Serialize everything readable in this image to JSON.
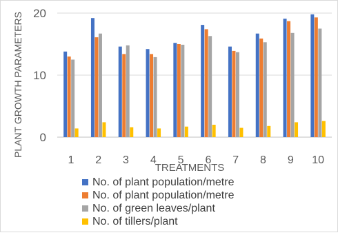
{
  "chart_data": {
    "type": "bar",
    "title": "",
    "xlabel": "TREATMENTS",
    "ylabel": "PLANT GROWTH PARAMETERS",
    "categories": [
      "1",
      "2",
      "3",
      "4",
      "5",
      "6",
      "7",
      "8",
      "9",
      "10"
    ],
    "ylim": [
      0,
      20
    ],
    "yticks": [
      "0",
      "10",
      "20"
    ],
    "grid": true,
    "legend_position": "bottom",
    "series": [
      {
        "name": "No. of plant population/metre",
        "color": "#4472C4",
        "values": [
          13.8,
          19.2,
          14.6,
          14.2,
          15.2,
          18.1,
          14.6,
          16.7,
          19.1,
          19.8
        ]
      },
      {
        "name": "No. of plant population/metre",
        "color": "#ED7D31",
        "values": [
          13.0,
          16.1,
          13.4,
          13.4,
          15.0,
          17.4,
          13.9,
          15.9,
          18.7,
          19.3
        ]
      },
      {
        "name": "No. of green leaves/plant",
        "color": "#A5A5A5",
        "values": [
          12.5,
          16.7,
          14.8,
          12.9,
          14.9,
          16.3,
          13.7,
          15.3,
          16.8,
          17.5
        ]
      },
      {
        "name": "No. of tillers/plant",
        "color": "#FFC000",
        "values": [
          1.4,
          2.4,
          1.6,
          1.4,
          1.7,
          2.0,
          1.5,
          1.8,
          2.4,
          2.6
        ]
      }
    ]
  }
}
